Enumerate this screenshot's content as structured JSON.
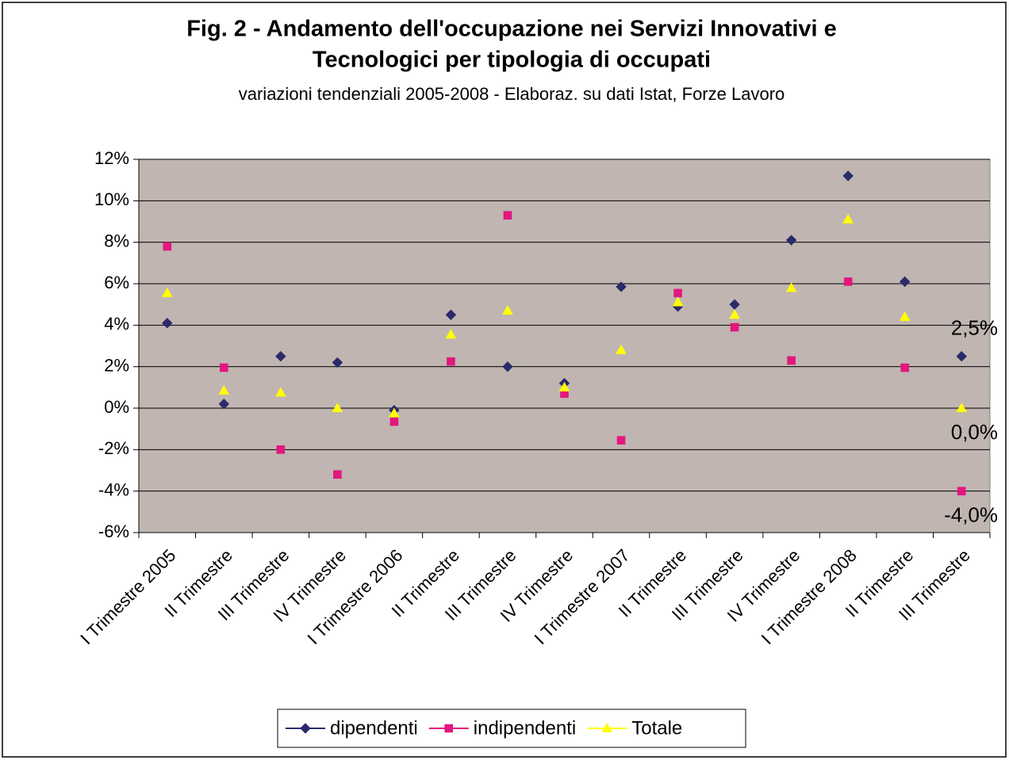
{
  "chart_data": {
    "type": "line",
    "title": [
      "Fig. 2 - Andamento dell'occupazione nei Servizi Innovativi e",
      "Tecnologici per tipologia di occupati"
    ],
    "subtitle": "variazioni tendenziali 2005-2008 - Elaboraz. su dati Istat, Forze Lavoro",
    "categories": [
      "I Trimestre 2005",
      "II Trimestre",
      "III Trimestre",
      "IV Trimestre",
      "I Trimestre 2006",
      "II Trimestre",
      "III Trimestre",
      "IV Trimestre",
      "I Trimestre 2007",
      "II Trimestre",
      "III Trimestre",
      "IV Trimestre",
      "I Trimestre 2008",
      "II Trimestre",
      "III Trimestre"
    ],
    "series": [
      {
        "name": "dipendenti",
        "color": "#2b2a6b",
        "marker": "diamond",
        "values": [
          4.1,
          0.2,
          2.5,
          2.2,
          -0.1,
          4.5,
          2.0,
          1.2,
          5.85,
          4.9,
          5.0,
          8.1,
          11.2,
          6.1,
          2.5
        ],
        "value_labels": [
          null,
          null,
          null,
          null,
          null,
          null,
          null,
          null,
          null,
          null,
          null,
          null,
          null,
          null,
          "2,5%"
        ]
      },
      {
        "name": "indipendenti",
        "color": "#e2177f",
        "marker": "square",
        "values": [
          7.8,
          1.95,
          -2.0,
          -3.2,
          -0.65,
          2.25,
          9.3,
          0.7,
          -1.55,
          5.55,
          3.9,
          2.3,
          6.1,
          1.95,
          -4.0
        ],
        "value_labels": [
          null,
          null,
          null,
          null,
          null,
          null,
          null,
          null,
          null,
          null,
          null,
          null,
          null,
          null,
          "-4,0%"
        ]
      },
      {
        "name": "Totale",
        "color": "#ffff00",
        "marker": "triangle",
        "values": [
          5.55,
          0.85,
          0.75,
          0.0,
          -0.25,
          3.55,
          4.7,
          1.0,
          2.8,
          5.1,
          4.5,
          5.8,
          9.1,
          4.4,
          0.0
        ],
        "value_labels": [
          null,
          null,
          null,
          null,
          null,
          null,
          null,
          null,
          null,
          null,
          null,
          null,
          null,
          null,
          "0,0%"
        ]
      }
    ],
    "ylim": [
      -6,
      12
    ],
    "yticks": [
      {
        "value": -6,
        "label": "-6%"
      },
      {
        "value": -4,
        "label": "-4%"
      },
      {
        "value": -2,
        "label": "-2%"
      },
      {
        "value": 0,
        "label": "0%"
      },
      {
        "value": 2,
        "label": "2%"
      },
      {
        "value": 4,
        "label": "4%"
      },
      {
        "value": 6,
        "label": "6%"
      },
      {
        "value": 8,
        "label": "8%"
      },
      {
        "value": 10,
        "label": "10%"
      },
      {
        "value": 12,
        "label": "12%"
      }
    ],
    "grid": true,
    "legend": "bottom"
  }
}
